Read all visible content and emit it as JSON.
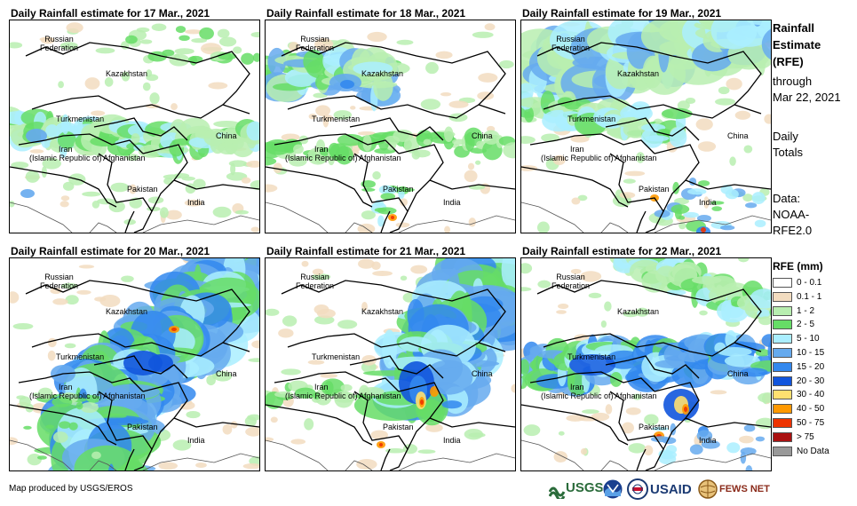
{
  "panels": [
    {
      "title": "Daily Rainfall estimate for 17 Mar., 2021",
      "variant": 0
    },
    {
      "title": "Daily Rainfall estimate for 18 Mar., 2021",
      "variant": 1
    },
    {
      "title": "Daily Rainfall estimate for 19 Mar., 2021",
      "variant": 2
    },
    {
      "title": "Daily Rainfall estimate for 20 Mar., 2021",
      "variant": 3
    },
    {
      "title": "Daily Rainfall estimate for 21 Mar., 2021",
      "variant": 4
    },
    {
      "title": "Daily Rainfall estimate for 22 Mar., 2021",
      "variant": 5
    }
  ],
  "map_labels": {
    "russia": "Russian\nFederation",
    "kazakhstan": "Kazakhstan",
    "turkmenistan": "Turkmenistan",
    "iran": "Iran\n(Islamic Republic of)",
    "afghanistan": "Afghanistan",
    "pakistan": "Pakistan",
    "china": "China",
    "india": "India"
  },
  "sidebar": {
    "rfe_title_1": "Rainfall",
    "rfe_title_2": "Estimate",
    "rfe_title_3": "(RFE)",
    "through": "through",
    "date": "Mar 22, 2021",
    "daily_1": "Daily",
    "daily_2": "Totals",
    "data_1": "Data:",
    "data_2": "NOAA-",
    "data_3": "RFE2.0"
  },
  "legend": {
    "title": "RFE (mm)",
    "items": [
      {
        "label": "0 - 0.1",
        "color": "#ffffff"
      },
      {
        "label": "0.1 - 1",
        "color": "#f2dcc0"
      },
      {
        "label": "1 - 2",
        "color": "#b8eeb0"
      },
      {
        "label": "2 - 5",
        "color": "#66dd66"
      },
      {
        "label": "5 - 10",
        "color": "#aaeeff"
      },
      {
        "label": "10 - 15",
        "color": "#66aaee"
      },
      {
        "label": "15 - 20",
        "color": "#3388ee"
      },
      {
        "label": "20 - 30",
        "color": "#1155dd"
      },
      {
        "label": "30 - 40",
        "color": "#ffe070"
      },
      {
        "label": "40 - 50",
        "color": "#ff9900"
      },
      {
        "label": "50 - 75",
        "color": "#ee3300"
      },
      {
        "label": "> 75",
        "color": "#aa1111"
      },
      {
        "label": "No Data",
        "color": "#999999"
      }
    ]
  },
  "credit": "Map produced by USGS/EROS",
  "logos": {
    "usgs": "USGS",
    "usaid": "USAID",
    "fews": "FEWS NET"
  }
}
